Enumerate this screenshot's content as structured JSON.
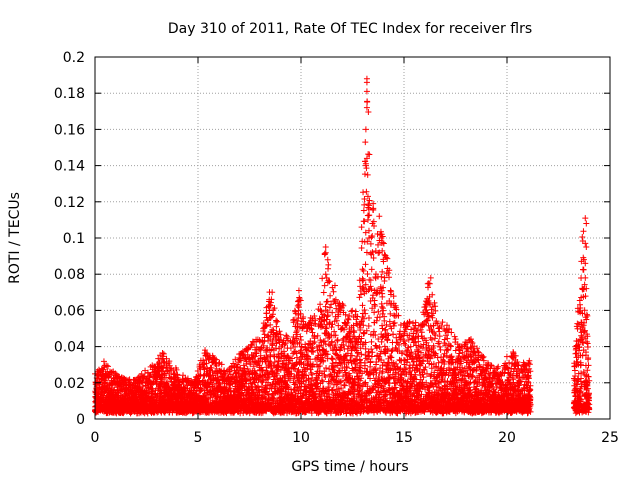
{
  "chart_data": {
    "type": "scatter",
    "title": "Day 310 of 2011, Rate Of TEC Index for receiver flrs",
    "xlabel": "GPS time / hours",
    "ylabel": "ROTI / TECUs",
    "xlim": [
      0,
      25
    ],
    "ylim": [
      0,
      0.2
    ],
    "xticks": [
      0,
      5,
      10,
      15,
      20,
      25
    ],
    "yticks": [
      0,
      0.02,
      0.04,
      0.06,
      0.08,
      0.1,
      0.12,
      0.14,
      0.16,
      0.18,
      0.2
    ],
    "grid": true,
    "marker": "+",
    "series": [
      {
        "name": "ROTI",
        "color": "#ff0000",
        "envelope": [
          [
            0.0,
            0.025
          ],
          [
            0.5,
            0.033
          ],
          [
            1.0,
            0.025
          ],
          [
            1.5,
            0.022
          ],
          [
            2.0,
            0.022
          ],
          [
            2.5,
            0.028
          ],
          [
            3.0,
            0.032
          ],
          [
            3.3,
            0.038
          ],
          [
            3.8,
            0.03
          ],
          [
            4.2,
            0.025
          ],
          [
            4.8,
            0.02
          ],
          [
            5.3,
            0.04
          ],
          [
            6.0,
            0.032
          ],
          [
            6.5,
            0.028
          ],
          [
            7.0,
            0.036
          ],
          [
            7.5,
            0.042
          ],
          [
            8.0,
            0.045
          ],
          [
            8.5,
            0.072
          ],
          [
            9.0,
            0.048
          ],
          [
            9.5,
            0.045
          ],
          [
            9.8,
            0.072
          ],
          [
            10.3,
            0.055
          ],
          [
            10.8,
            0.062
          ],
          [
            11.2,
            0.096
          ],
          [
            11.8,
            0.068
          ],
          [
            12.3,
            0.06
          ],
          [
            12.8,
            0.062
          ],
          [
            13.2,
            0.188
          ],
          [
            13.6,
            0.1
          ],
          [
            14.0,
            0.108
          ],
          [
            14.4,
            0.072
          ],
          [
            14.8,
            0.055
          ],
          [
            15.3,
            0.055
          ],
          [
            15.8,
            0.052
          ],
          [
            16.2,
            0.08
          ],
          [
            16.7,
            0.055
          ],
          [
            17.2,
            0.052
          ],
          [
            17.8,
            0.04
          ],
          [
            18.2,
            0.046
          ],
          [
            18.8,
            0.035
          ],
          [
            19.3,
            0.03
          ],
          [
            19.8,
            0.028
          ],
          [
            20.2,
            0.042
          ],
          [
            20.6,
            0.03
          ],
          [
            21.1,
            0.033
          ],
          [
            23.3,
            0.038
          ],
          [
            23.7,
            0.112
          ],
          [
            24.0,
            0.02
          ]
        ],
        "spikes": [
          [
            13.2,
            0.188
          ],
          [
            13.2,
            0.186
          ],
          [
            13.2,
            0.181
          ],
          [
            13.2,
            0.172
          ],
          [
            13.15,
            0.16
          ],
          [
            13.2,
            0.144
          ],
          [
            13.15,
            0.14
          ],
          [
            13.25,
            0.123
          ],
          [
            13.3,
            0.118
          ],
          [
            13.3,
            0.116
          ],
          [
            13.25,
            0.11
          ],
          [
            13.3,
            0.104
          ],
          [
            13.3,
            0.1
          ],
          [
            13.2,
            0.092
          ],
          [
            13.8,
            0.112
          ],
          [
            13.9,
            0.1
          ],
          [
            13.8,
            0.092
          ],
          [
            11.2,
            0.095
          ],
          [
            11.3,
            0.088
          ],
          [
            11.2,
            0.08
          ],
          [
            16.3,
            0.078
          ],
          [
            16.2,
            0.075
          ],
          [
            9.9,
            0.071
          ],
          [
            8.6,
            0.07
          ],
          [
            23.8,
            0.111
          ],
          [
            23.85,
            0.108
          ],
          [
            23.8,
            0.097
          ],
          [
            23.85,
            0.095
          ],
          [
            23.8,
            0.086
          ],
          [
            23.8,
            0.078
          ],
          [
            23.85,
            0.072
          ],
          [
            23.9,
            0.057
          ],
          [
            23.85,
            0.055
          ],
          [
            23.6,
            0.046
          ],
          [
            23.7,
            0.042
          ]
        ]
      }
    ]
  }
}
